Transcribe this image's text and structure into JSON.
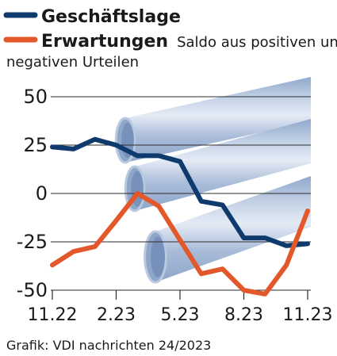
{
  "chart_data": {
    "type": "line",
    "legend_placement": "top-left",
    "legend_note_line1": "Saldo aus positiven und",
    "legend_note_line2": "negativen Urteilen",
    "series": [
      {
        "name": "Geschäftslage",
        "color": "#0e3a6e",
        "values": [
          24,
          23,
          28,
          25,
          19.5,
          19.5,
          16.5,
          -4,
          -6,
          -23,
          -23,
          -27,
          -26
        ]
      },
      {
        "name": "Erwartungen",
        "color": "#e2582a",
        "values": [
          -37,
          -30,
          -27.5,
          -14,
          0,
          -6.5,
          -24,
          -41.5,
          -39,
          -50,
          -52,
          -37,
          -9
        ]
      }
    ],
    "x_ticks": [
      "11.22",
      "2.23",
      "5.23",
      "8.23",
      "11.23"
    ],
    "y_ticks": [
      50,
      25,
      0,
      -25,
      -50
    ],
    "ylim": [
      -50,
      50
    ],
    "grid": true,
    "background_illustration": "pipes",
    "source": "Grafik: VDI nachrichten 24/2023"
  }
}
